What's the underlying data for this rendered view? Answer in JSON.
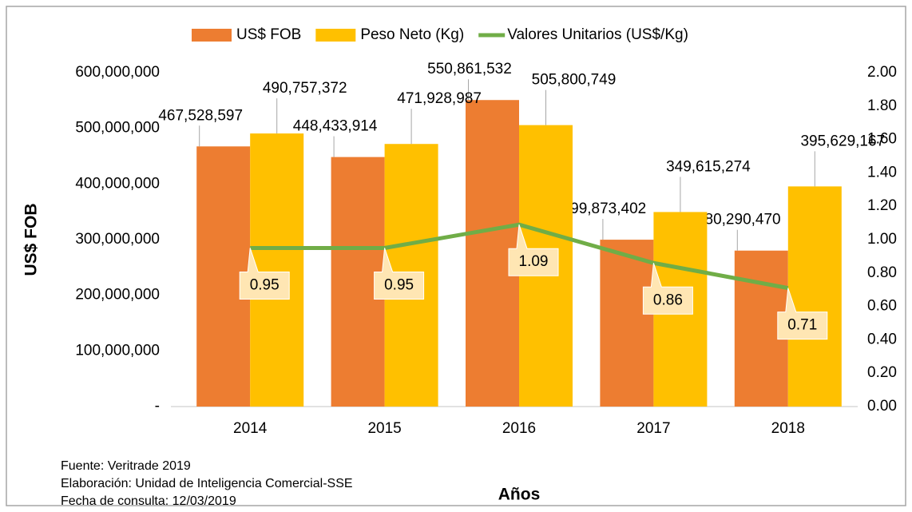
{
  "chart_data": {
    "type": "bar",
    "categories": [
      "2014",
      "2015",
      "2016",
      "2017",
      "2018"
    ],
    "series": [
      {
        "name": "US$ FOB",
        "color": "#ED7D31",
        "type": "bar",
        "values": [
          467528597,
          448433914,
          550861532,
          299873402,
          280290470
        ],
        "value_labels": [
          "467,528,597",
          "448,433,914",
          "550,861,532",
          "299,873,402",
          "280,290,470"
        ]
      },
      {
        "name": "Peso Neto (Kg)",
        "color": "#FFC000",
        "type": "bar",
        "values": [
          490757372,
          471928987,
          505800749,
          349615274,
          395629167
        ],
        "value_labels": [
          "490,757,372",
          "471,928,987",
          "505,800,749",
          "349,615,274",
          "395,629,167"
        ]
      },
      {
        "name": "Valores Unitarios (US$/Kg)",
        "color": "#70AD47",
        "type": "line",
        "axis": "y2",
        "values": [
          0.95,
          0.95,
          1.09,
          0.86,
          0.71
        ]
      }
    ],
    "ylabel": "US$ FOB",
    "xlabel": "Años",
    "ylim": [
      0,
      600000000
    ],
    "yticks": [
      {
        "value": 0,
        "label": "-"
      },
      {
        "value": 100000000,
        "label": "100,000,000"
      },
      {
        "value": 200000000,
        "label": "200,000,000"
      },
      {
        "value": 300000000,
        "label": "300,000,000"
      },
      {
        "value": 400000000,
        "label": "400,000,000"
      },
      {
        "value": 500000000,
        "label": "500,000,000"
      },
      {
        "value": 600000000,
        "label": "600,000,000"
      }
    ],
    "y2lim": [
      0,
      2
    ],
    "y2ticks": [
      {
        "value": 0,
        "label": "0.00"
      },
      {
        "value": 0.2,
        "label": "0.20"
      },
      {
        "value": 0.4,
        "label": "0.40"
      },
      {
        "value": 0.6,
        "label": "0.60"
      },
      {
        "value": 0.8,
        "label": "0.80"
      },
      {
        "value": 1,
        "label": "1.00"
      },
      {
        "value": 1.2,
        "label": "1.20"
      },
      {
        "value": 1.4,
        "label": "1.40"
      },
      {
        "value": 1.6,
        "label": "1.60"
      },
      {
        "value": 1.8,
        "label": "1.80"
      },
      {
        "value": 2,
        "label": "2.00"
      }
    ],
    "legend": "top",
    "annotations": [
      "Fuente: Veritrade 2019",
      "Elaboración: Unidad de Inteligencia Comercial-SSE",
      "Fecha de consulta: 12/03/2019"
    ]
  }
}
